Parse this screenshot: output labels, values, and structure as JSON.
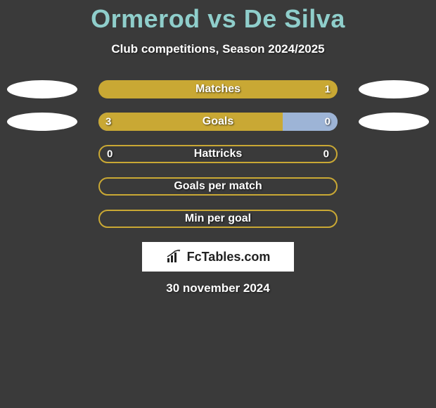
{
  "title_color": "#8fcecb",
  "background_color": "#3a3a3a",
  "players": {
    "left": "Ormerod",
    "right": "De Silva"
  },
  "title_vs": "vs",
  "subtitle": "Club competitions, Season 2024/2025",
  "colors": {
    "left": "#c9a834",
    "right": "#9db4d6",
    "left_ellipse": "#ffffff",
    "right_ellipse": "#ffffff",
    "label_text": "#ffffff"
  },
  "rows": [
    {
      "label": "Matches",
      "show_ellipses": true,
      "left_val": "",
      "right_val": "1",
      "left_pct": 0,
      "right_pct": 100,
      "neutral_fill": "#c9a834"
    },
    {
      "label": "Goals",
      "show_ellipses": true,
      "left_val": "3",
      "right_val": "0",
      "left_pct": 77,
      "right_pct": 23,
      "neutral_fill": null
    },
    {
      "label": "Hattricks",
      "show_ellipses": false,
      "left_val": "0",
      "right_val": "0",
      "left_pct": 0,
      "right_pct": 0,
      "neutral_fill": null,
      "outline_only": true,
      "outline_color": "#c9a834"
    },
    {
      "label": "Goals per match",
      "show_ellipses": false,
      "left_val": "",
      "right_val": "",
      "left_pct": 0,
      "right_pct": 0,
      "neutral_fill": null,
      "outline_only": true,
      "outline_color": "#c9a834"
    },
    {
      "label": "Min per goal",
      "show_ellipses": false,
      "left_val": "",
      "right_val": "",
      "left_pct": 0,
      "right_pct": 0,
      "neutral_fill": null,
      "outline_only": true,
      "outline_color": "#c9a834"
    }
  ],
  "logo_text": "FcTables.com",
  "date": "30 november 2024"
}
